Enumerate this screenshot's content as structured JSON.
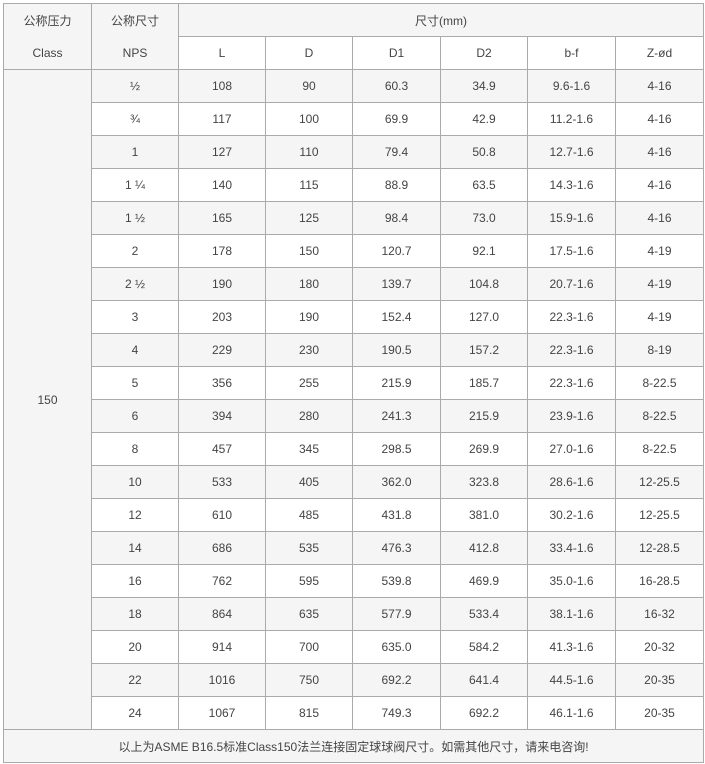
{
  "header": {
    "class_cn": "公称压力",
    "class_en": "Class",
    "nps_cn": "公称尺寸",
    "nps_en": "NPS",
    "size_group": "尺寸(mm)",
    "columns": [
      "L",
      "D",
      "D1",
      "D2",
      "b-f",
      "Z-ød"
    ]
  },
  "class_value": "150",
  "rows": [
    [
      "½",
      "108",
      "90",
      "60.3",
      "34.9",
      "9.6-1.6",
      "4-16"
    ],
    [
      "¾",
      "117",
      "100",
      "69.9",
      "42.9",
      "11.2-1.6",
      "4-16"
    ],
    [
      "1",
      "127",
      "110",
      "79.4",
      "50.8",
      "12.7-1.6",
      "4-16"
    ],
    [
      "1 ¼",
      "140",
      "115",
      "88.9",
      "63.5",
      "14.3-1.6",
      "4-16"
    ],
    [
      "1 ½",
      "165",
      "125",
      "98.4",
      "73.0",
      "15.9-1.6",
      "4-16"
    ],
    [
      "2",
      "178",
      "150",
      "120.7",
      "92.1",
      "17.5-1.6",
      "4-19"
    ],
    [
      "2 ½",
      "190",
      "180",
      "139.7",
      "104.8",
      "20.7-1.6",
      "4-19"
    ],
    [
      "3",
      "203",
      "190",
      "152.4",
      "127.0",
      "22.3-1.6",
      "4-19"
    ],
    [
      "4",
      "229",
      "230",
      "190.5",
      "157.2",
      "22.3-1.6",
      "8-19"
    ],
    [
      "5",
      "356",
      "255",
      "215.9",
      "185.7",
      "22.3-1.6",
      "8-22.5"
    ],
    [
      "6",
      "394",
      "280",
      "241.3",
      "215.9",
      "23.9-1.6",
      "8-22.5"
    ],
    [
      "8",
      "457",
      "345",
      "298.5",
      "269.9",
      "27.0-1.6",
      "8-22.5"
    ],
    [
      "10",
      "533",
      "405",
      "362.0",
      "323.8",
      "28.6-1.6",
      "12-25.5"
    ],
    [
      "12",
      "610",
      "485",
      "431.8",
      "381.0",
      "30.2-1.6",
      "12-25.5"
    ],
    [
      "14",
      "686",
      "535",
      "476.3",
      "412.8",
      "33.4-1.6",
      "12-28.5"
    ],
    [
      "16",
      "762",
      "595",
      "539.8",
      "469.9",
      "35.0-1.6",
      "16-28.5"
    ],
    [
      "18",
      "864",
      "635",
      "577.9",
      "533.4",
      "38.1-1.6",
      "16-32"
    ],
    [
      "20",
      "914",
      "700",
      "635.0",
      "584.2",
      "41.3-1.6",
      "20-32"
    ],
    [
      "22",
      "1016",
      "750",
      "692.2",
      "641.4",
      "44.5-1.6",
      "20-35"
    ],
    [
      "24",
      "1067",
      "815",
      "749.3",
      "692.2",
      "46.1-1.6",
      "20-35"
    ]
  ],
  "footer": "以上为ASME B16.5标准Class150法兰连接固定球球阀尺寸。如需其他尺寸，请来电咨询!"
}
